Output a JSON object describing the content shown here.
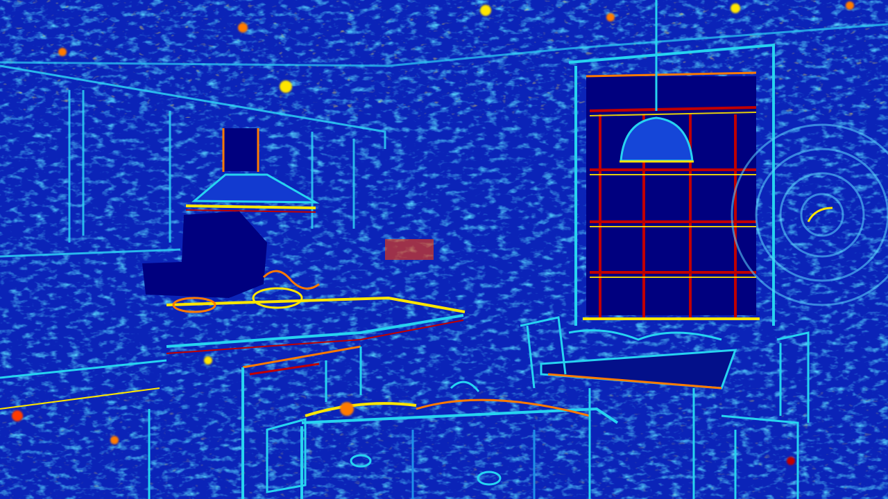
{
  "image": {
    "kind": "heatmap-visualization",
    "colormap": "jet",
    "palette": {
      "deep": "#00007f",
      "blue": "#0a1ea8",
      "mid_blue": "#1f4fe0",
      "cyan": "#27d3f0",
      "yellow": "#ffe600",
      "orange": "#ff7a00",
      "red": "#c00000"
    },
    "objects": [
      "range-hood",
      "kitchen-counter",
      "sink-cabinet",
      "window",
      "pendant-lamp",
      "dining-table",
      "chair-left",
      "chair-right",
      "wall-cabinets",
      "concentric-ripple"
    ]
  }
}
